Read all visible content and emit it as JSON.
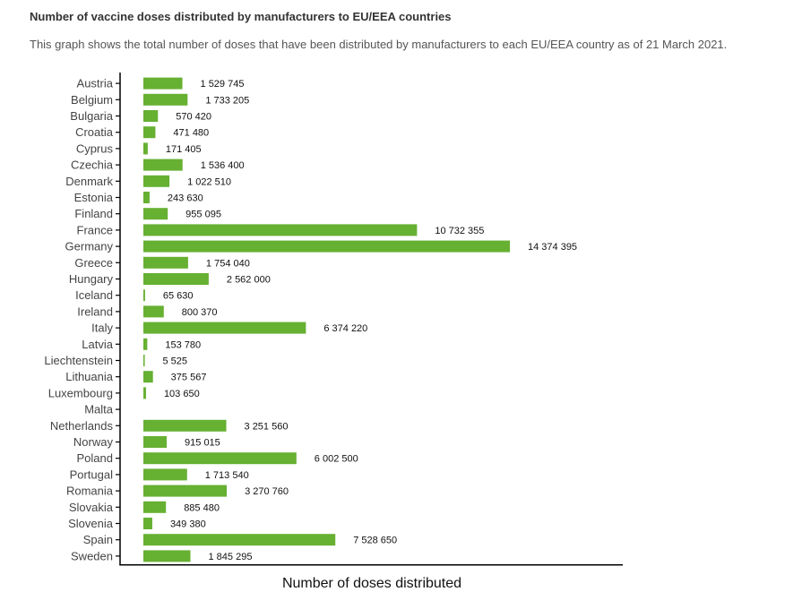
{
  "header": {
    "title": "Number of vaccine doses distributed by manufacturers to EU/EEA countries",
    "subtitle": "This graph shows the total number of doses that have been distributed by manufacturers to each EU/EEA country as of 21 March 2021."
  },
  "chart_data": {
    "type": "bar",
    "orientation": "horizontal",
    "xlabel": "Number of doses distributed",
    "ylabel": "",
    "xlim": [
      0,
      15000000
    ],
    "grid": false,
    "bar_color": "#66b032",
    "categories": [
      "Austria",
      "Belgium",
      "Bulgaria",
      "Croatia",
      "Cyprus",
      "Czechia",
      "Denmark",
      "Estonia",
      "Finland",
      "France",
      "Germany",
      "Greece",
      "Hungary",
      "Iceland",
      "Ireland",
      "Italy",
      "Latvia",
      "Liechtenstein",
      "Lithuania",
      "Luxembourg",
      "Malta",
      "Netherlands",
      "Norway",
      "Poland",
      "Portugal",
      "Romania",
      "Slovakia",
      "Slovenia",
      "Spain",
      "Sweden"
    ],
    "values": [
      1529745,
      1733205,
      570420,
      471480,
      171405,
      1536400,
      1022510,
      243630,
      955095,
      10732355,
      14374395,
      1754040,
      2562000,
      65630,
      800370,
      6374220,
      153780,
      5525,
      375567,
      103650,
      null,
      3251560,
      915015,
      6002500,
      1713540,
      3270760,
      885480,
      349380,
      7528650,
      1845295
    ],
    "value_labels": [
      "1 529 745",
      "1 733 205",
      "570 420",
      "471 480",
      "171 405",
      "1 536 400",
      "1 022 510",
      "243 630",
      "955 095",
      "10 732 355",
      "14 374 395",
      "1 754 040",
      "2 562 000",
      "65 630",
      "800 370",
      "6 374 220",
      "153 780",
      "5 525",
      "375 567",
      "103 650",
      "",
      "3 251 560",
      "915 015",
      "6 002 500",
      "1 713 540",
      "3 270 760",
      "885 480",
      "349 380",
      "7 528 650",
      "1 845 295"
    ]
  }
}
